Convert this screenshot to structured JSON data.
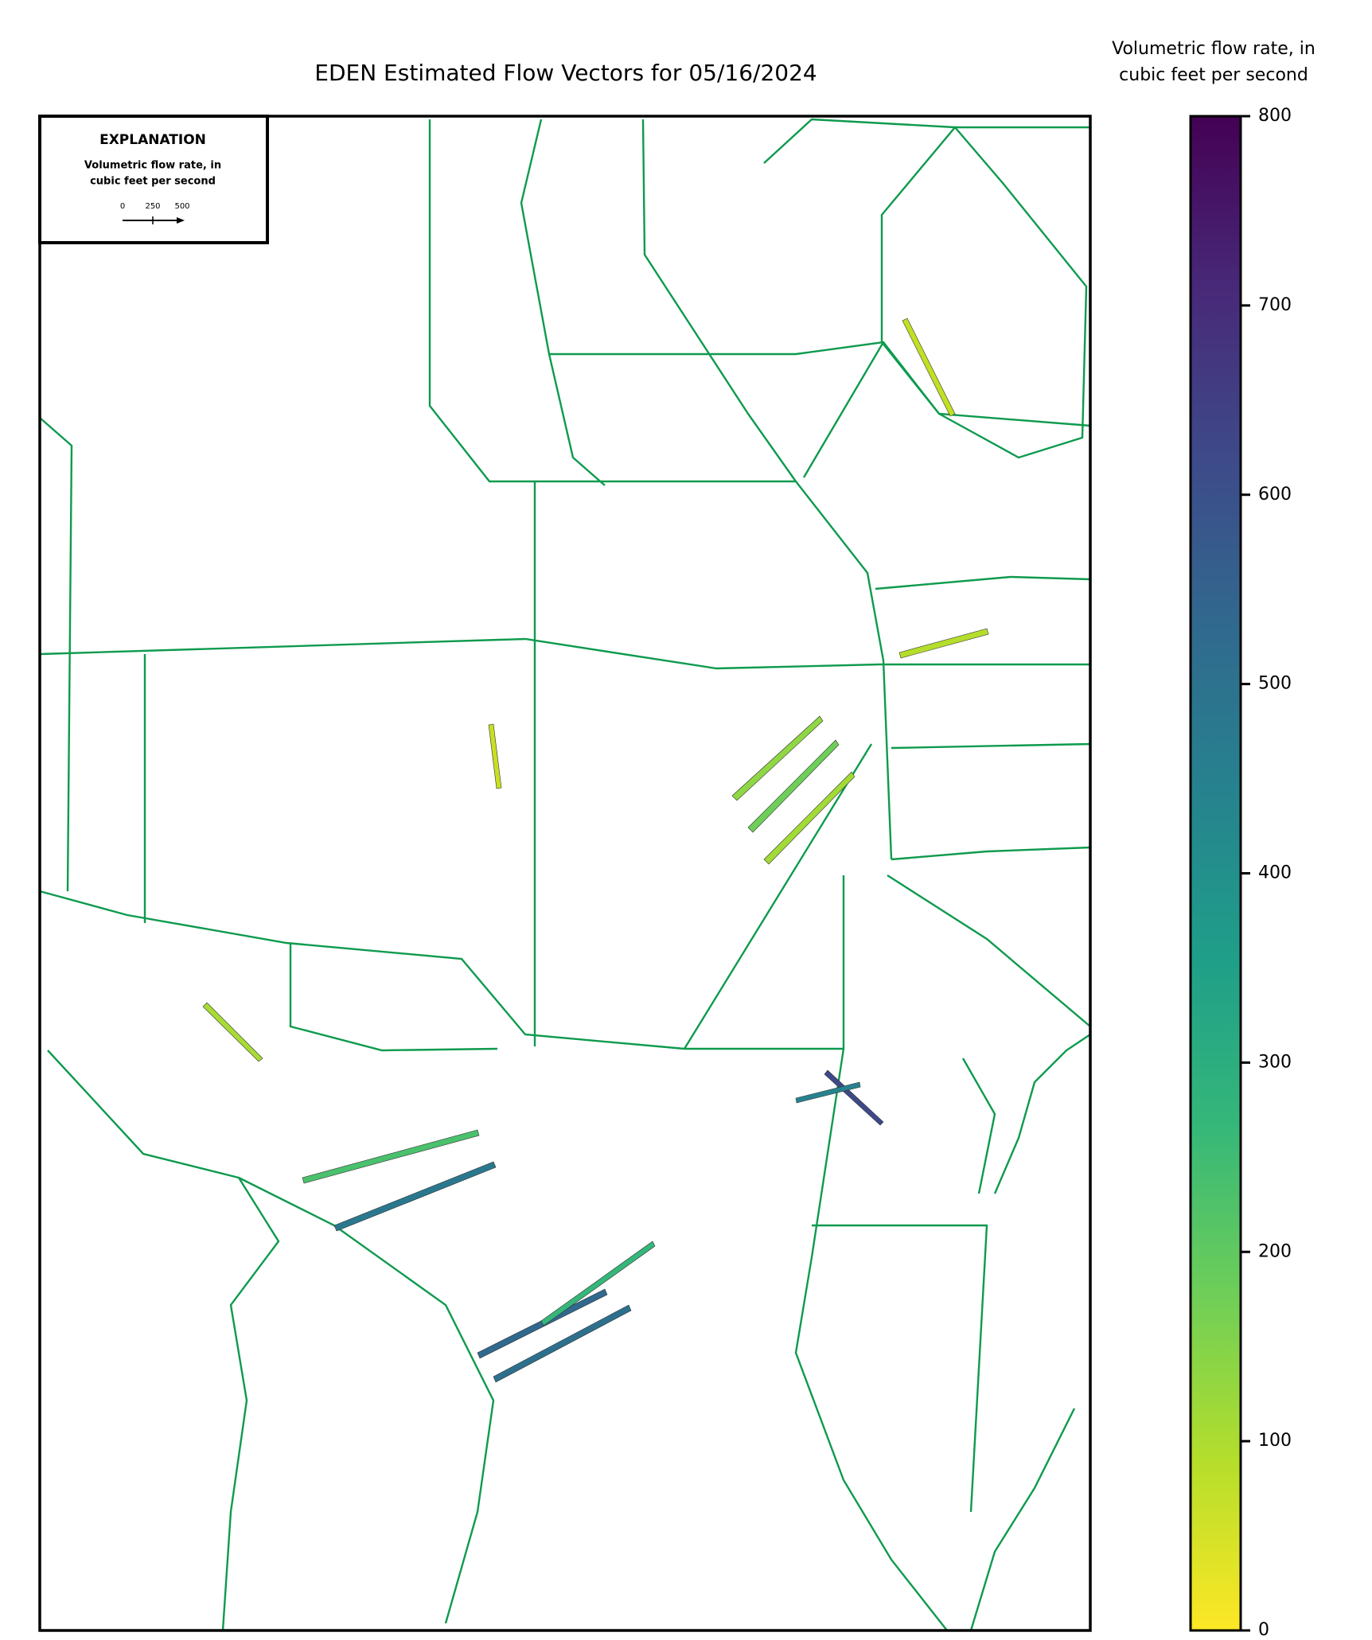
{
  "map": {
    "title": "EDEN Estimated Flow Vectors for 05/16/2024",
    "explanation": {
      "heading": "EXPLANATION",
      "lines": [
        "Volumetric flow rate, in",
        "cubic feet per second"
      ],
      "scale_labels": [
        "0",
        "250",
        "500"
      ]
    },
    "colorbar": {
      "label": [
        "Volumetric flow rate, in",
        "cubic feet per second"
      ],
      "lim": [
        0,
        800
      ],
      "ticks": [
        0,
        100,
        200,
        300,
        400,
        500,
        600,
        700,
        800
      ],
      "colors": [
        "#fde725",
        "#b5de2b",
        "#6ece58",
        "#35b779",
        "#1f9e89",
        "#26828e",
        "#31688e",
        "#3e4989",
        "#482878",
        "#440154"
      ]
    }
  }
}
